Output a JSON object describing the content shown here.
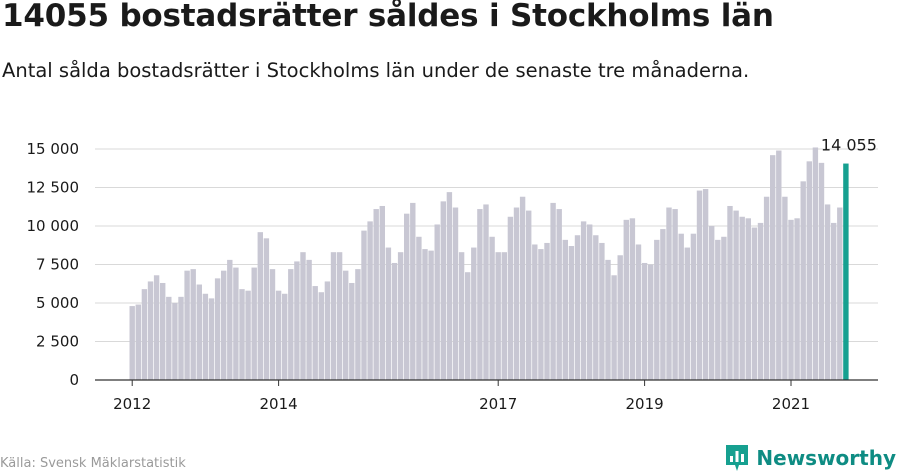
{
  "header": {
    "title": "14055 bostadsrätter såldes i Stockholms län",
    "subtitle": "Antal sålda bostadsrätter i Stockholms län under de senaste tre månaderna."
  },
  "footer": {
    "source": "Källa: Svensk Mäklarstatistik",
    "brand": "Newsworthy"
  },
  "colors": {
    "bar": "#c8c7d3",
    "highlight": "#16a090",
    "grid": "#d9d9d9",
    "axis": "#333333",
    "brand": "#0e8c83"
  },
  "chart_data": {
    "type": "bar",
    "title": "",
    "xlabel": "",
    "ylabel": "",
    "ylim": [
      0,
      15000
    ],
    "yticks": [
      0,
      2500,
      5000,
      7500,
      10000,
      12500,
      15000
    ],
    "ytick_labels": [
      "0",
      "2 500",
      "5 000",
      "7 500",
      "10 000",
      "12 500",
      "15 000"
    ],
    "xtick_labels": [
      {
        "label": "2012",
        "index": 0
      },
      {
        "label": "2014",
        "index": 24
      },
      {
        "label": "2017",
        "index": 60
      },
      {
        "label": "2019",
        "index": 84
      },
      {
        "label": "2021",
        "index": 108
      }
    ],
    "highlight_index": 117,
    "highlight_label": "14 055",
    "values": [
      4800,
      4900,
      5900,
      6400,
      6800,
      6300,
      5400,
      5000,
      5400,
      7100,
      7200,
      6200,
      5600,
      5300,
      6600,
      7100,
      7800,
      7300,
      5900,
      5800,
      7300,
      9600,
      9200,
      7200,
      5800,
      5600,
      7200,
      7700,
      8300,
      7800,
      6100,
      5700,
      6400,
      8300,
      8300,
      7100,
      6300,
      7200,
      9700,
      10300,
      11100,
      11300,
      8600,
      7600,
      8300,
      10800,
      11500,
      9300,
      8500,
      8400,
      10100,
      11600,
      12200,
      11200,
      8300,
      7000,
      8600,
      11100,
      11400,
      9300,
      8300,
      8300,
      10600,
      11200,
      11900,
      11000,
      8800,
      8500,
      8900,
      11500,
      11100,
      9100,
      8700,
      9400,
      10300,
      10100,
      9400,
      8900,
      7800,
      6800,
      8100,
      10400,
      10500,
      8800,
      7600,
      7500,
      9100,
      9800,
      11200,
      11100,
      9500,
      8600,
      9500,
      12300,
      12400,
      10000,
      9100,
      9300,
      11300,
      11000,
      10600,
      10500,
      9900,
      10200,
      11900,
      14600,
      14900,
      11900,
      10400,
      10500,
      12900,
      14200,
      15100,
      14100,
      11400,
      10200,
      11200,
      14055
    ]
  }
}
